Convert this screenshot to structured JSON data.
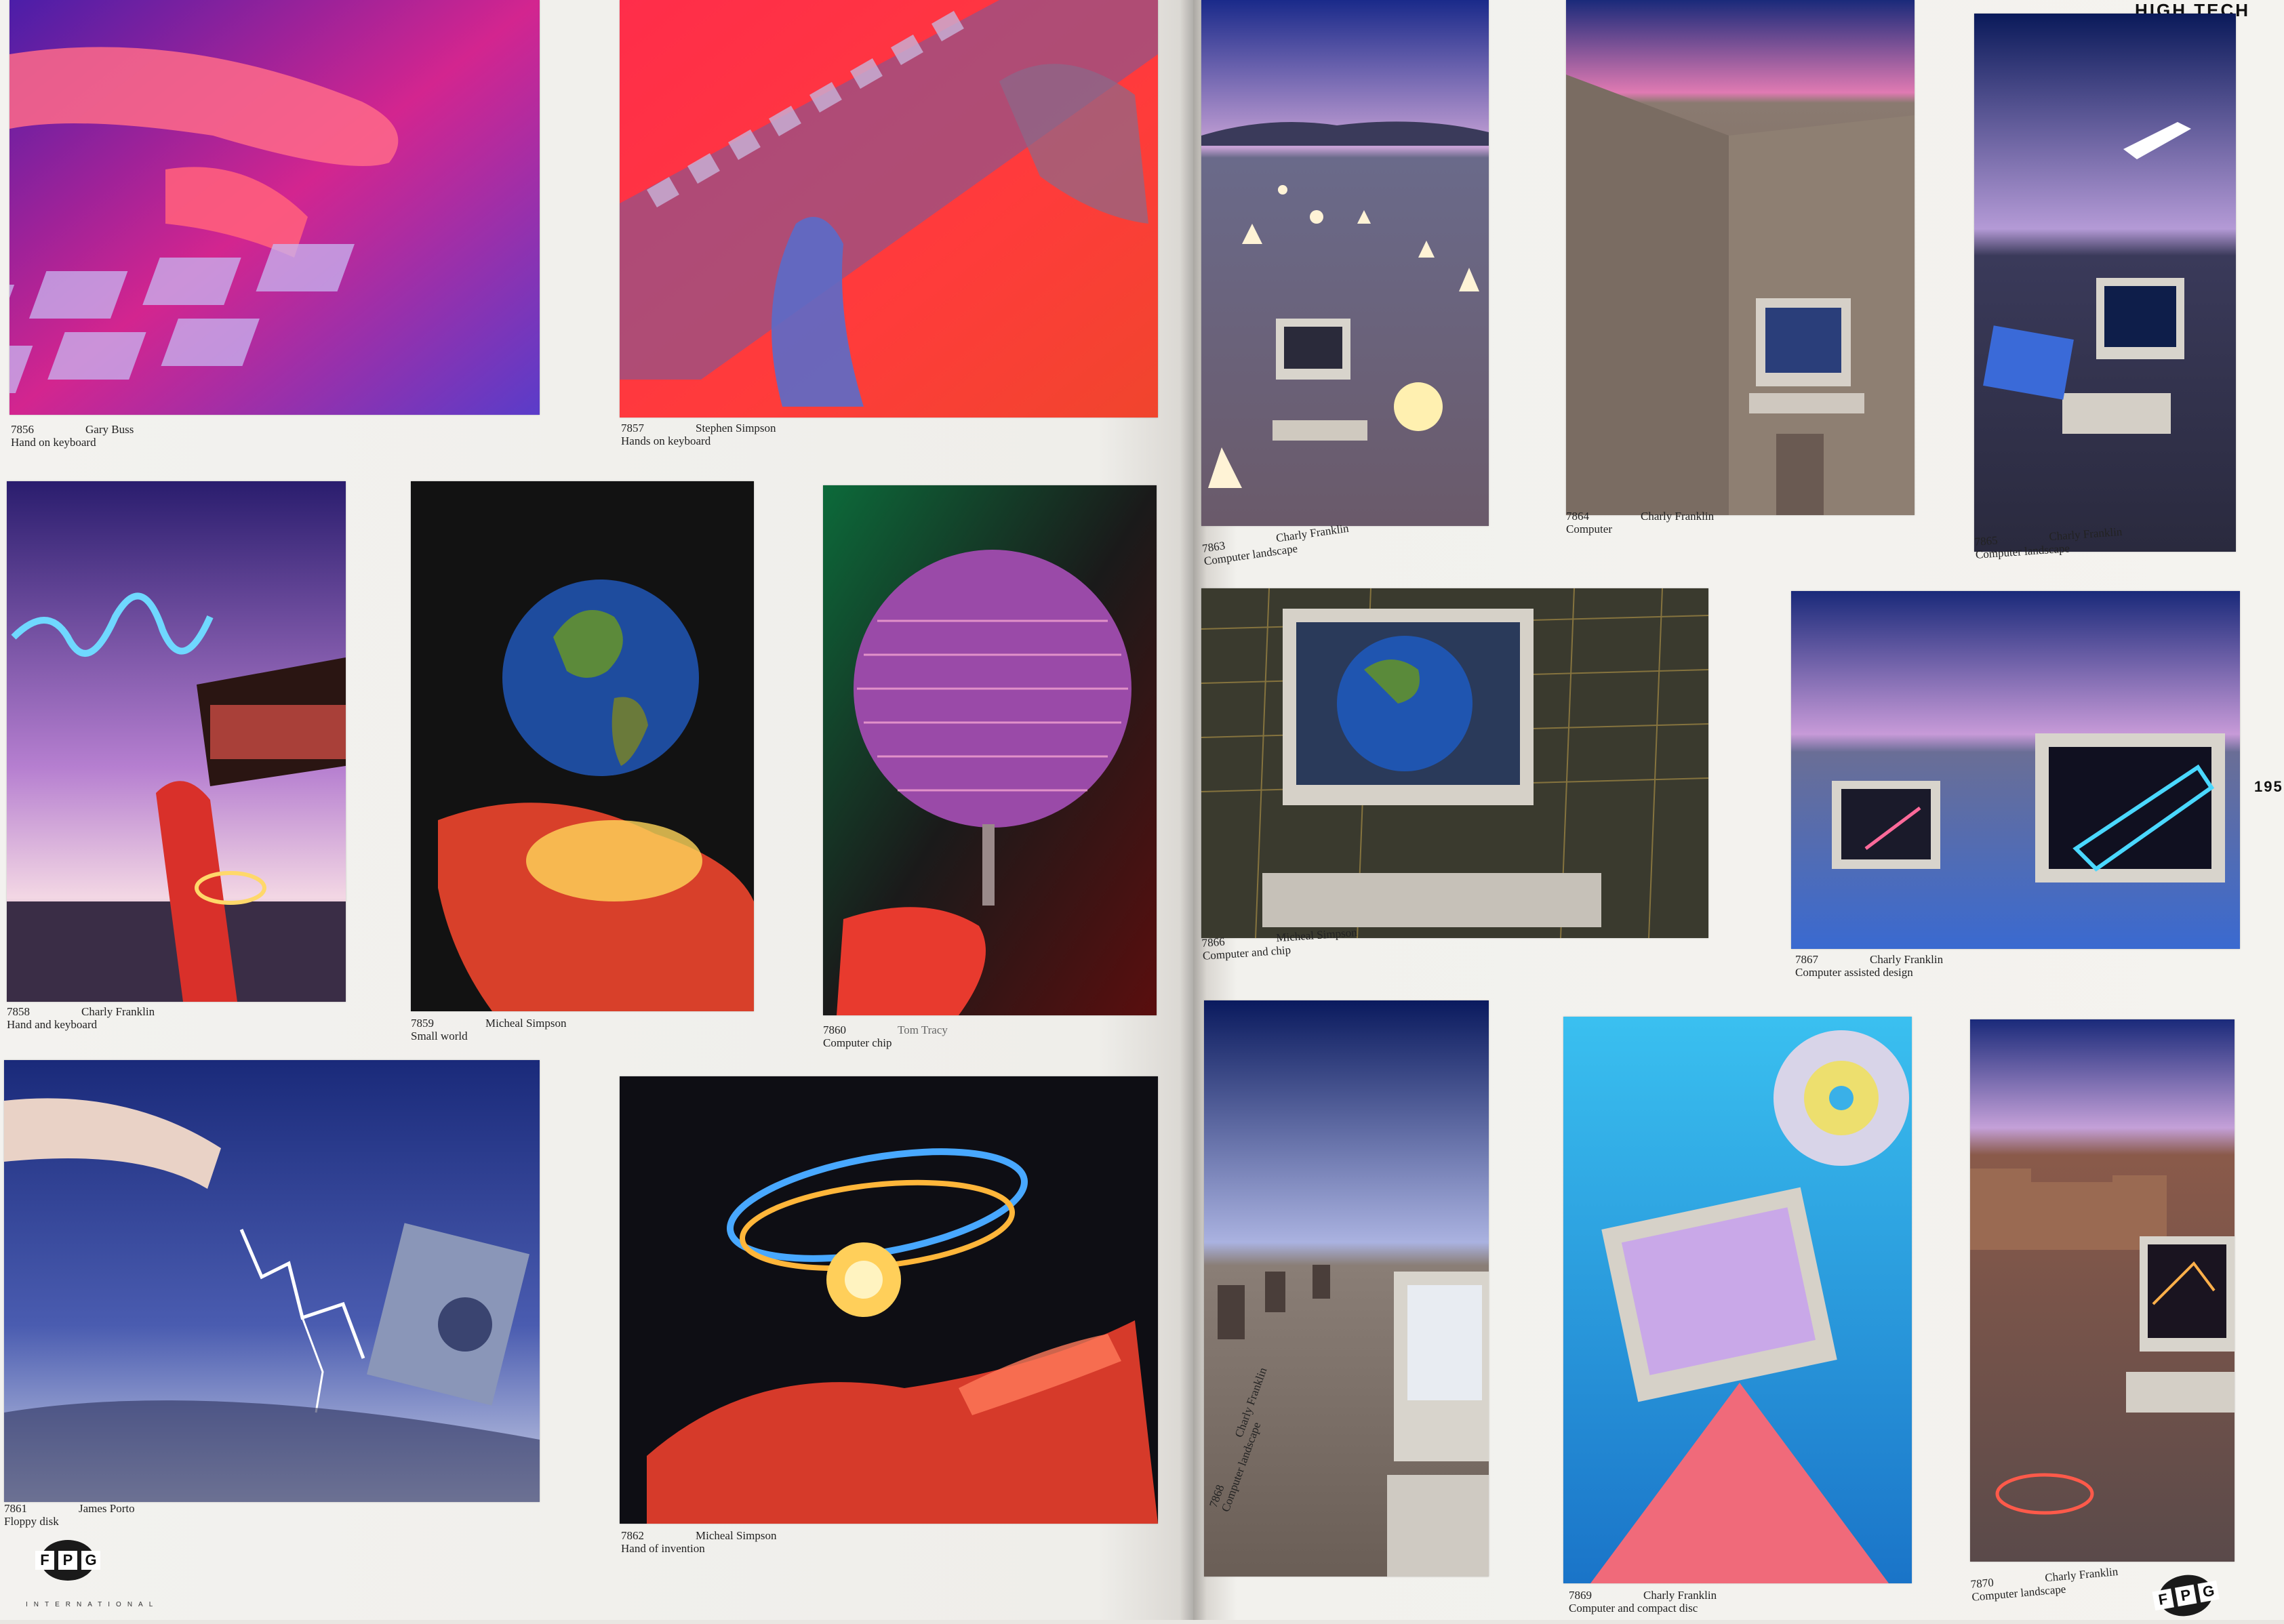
{
  "header": {
    "section": "HIGH TECH",
    "page_number": "195"
  },
  "logo": {
    "letters": [
      "F",
      "P",
      "G"
    ],
    "subtitle": "INTERNATIONAL"
  },
  "photos": [
    {
      "id": "7856",
      "photographer": "Gary Buss",
      "title": "Hand on keyboard"
    },
    {
      "id": "7857",
      "photographer": "Stephen Simpson",
      "title": "Hands on keyboard"
    },
    {
      "id": "7858",
      "photographer": "Charly Franklin",
      "title": "Hand and keyboard"
    },
    {
      "id": "7859",
      "photographer": "Micheal Simpson",
      "title": "Small world"
    },
    {
      "id": "7860",
      "photographer": "Tom Tracy",
      "title": "Computer chip"
    },
    {
      "id": "7861",
      "photographer": "James Porto",
      "title": "Floppy disk"
    },
    {
      "id": "7862",
      "photographer": "Micheal Simpson",
      "title": "Hand of invention"
    },
    {
      "id": "7863",
      "photographer": "Charly Franklin",
      "title": "Computer landscape"
    },
    {
      "id": "7864",
      "photographer": "Charly Franklin",
      "title": "Computer"
    },
    {
      "id": "7865",
      "photographer": "Charly Franklin",
      "title": "Computer landscape"
    },
    {
      "id": "7866",
      "photographer": "Micheal Simpson",
      "title": "Computer and chip"
    },
    {
      "id": "7867",
      "photographer": "Charly Franklin",
      "title": "Computer assisted design"
    },
    {
      "id": "7868",
      "photographer": "Charly Franklin",
      "title": "Computer landscape"
    },
    {
      "id": "7869",
      "photographer": "Charly Franklin",
      "title": "Computer and compact disc"
    },
    {
      "id": "7870",
      "photographer": "Charly Franklin",
      "title": "Computer landscape"
    }
  ]
}
